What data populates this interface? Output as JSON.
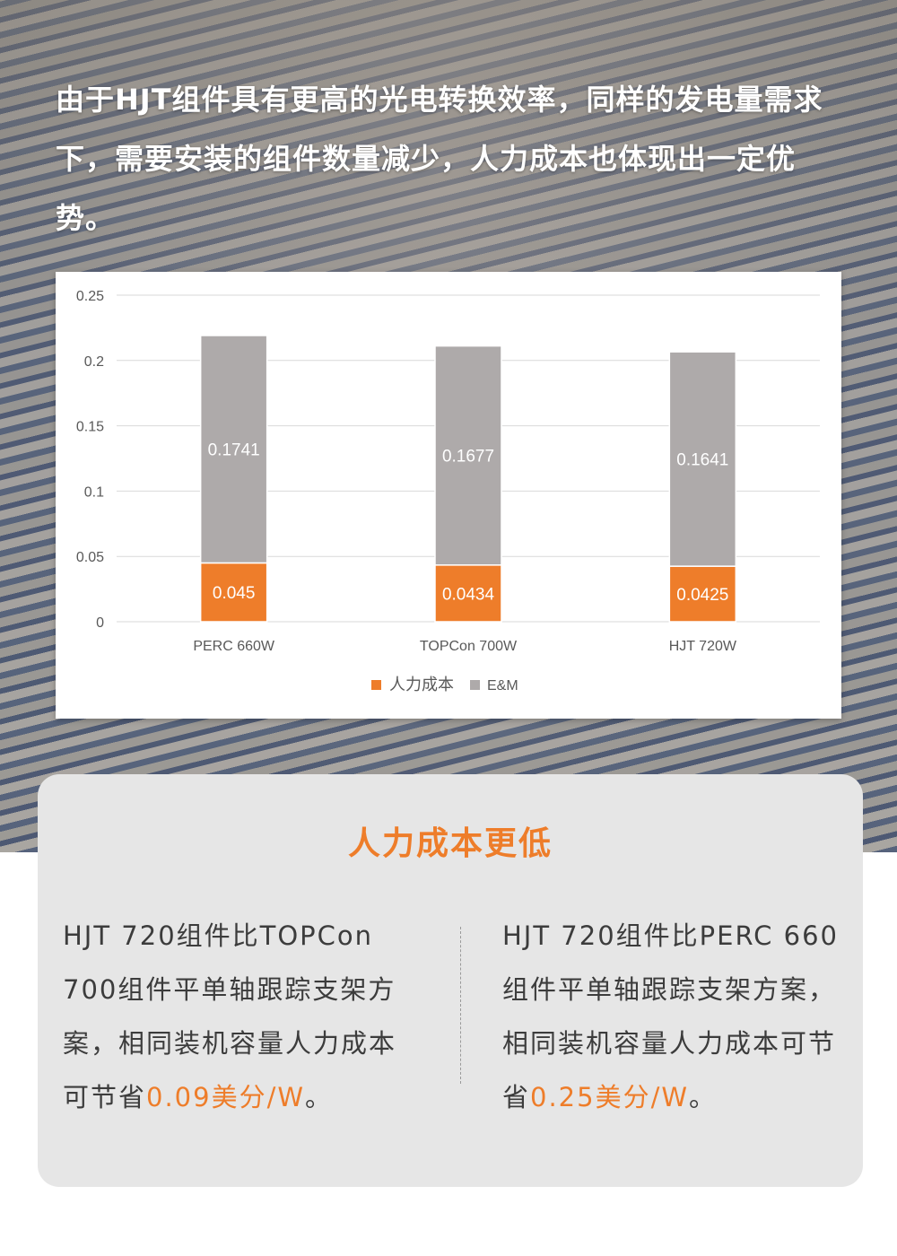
{
  "intro_text": "由于HJT组件具有更高的光电转换效率，同样的发电量需求下，需要安装的组件数量减少，人力成本也体现出一定优势。",
  "colors": {
    "labor": "#ee7d2a",
    "em": "#aeaaaa",
    "accent": "#ee7d2a",
    "panel_bg": "#e6e6e6"
  },
  "chart_data": {
    "type": "bar",
    "stacked": true,
    "categories": [
      "PERC 660W",
      "TOPCon 700W",
      "HJT 720W"
    ],
    "series": [
      {
        "name": "人力成本",
        "values": [
          0.045,
          0.0434,
          0.0425
        ],
        "labels": [
          "0.045",
          "0.0434",
          "0.0425"
        ]
      },
      {
        "name": "E&M",
        "values": [
          0.1741,
          0.1677,
          0.1641
        ],
        "labels": [
          "0.1741",
          "0.1677",
          "0.1641"
        ]
      }
    ],
    "ylim": [
      0,
      0.25
    ],
    "yticks": [
      "0",
      "0.05",
      "0.1",
      "0.15",
      "0.2",
      "0.25"
    ],
    "grid": true,
    "legend_position": "bottom"
  },
  "panel": {
    "title": "人力成本更低",
    "left_text": "HJT 720组件比TOPCon 700组件平单轴跟踪支架方案，相同装机容量人力成本可节省",
    "left_highlight": "0.09美分/W",
    "left_end": "。",
    "right_text": "HJT 720组件比PERC 660组件平单轴跟踪支架方案，相同装机容量人力成本可节省",
    "right_highlight": "0.25美分/W",
    "right_end": "。"
  }
}
